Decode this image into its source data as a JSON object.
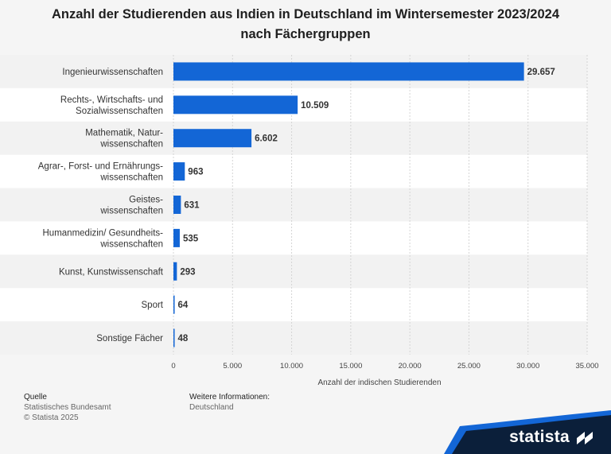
{
  "chart_data": {
    "type": "bar",
    "orientation": "horizontal",
    "title": "Anzahl der Studierenden aus Indien in Deutschland im Wintersemester 2023/2024 nach Fächergruppen",
    "title_lines": [
      "Anzahl der Studierenden aus Indien in Deutschland im Wintersemester 2023/2024",
      "nach Fächergruppen"
    ],
    "categories": [
      [
        "Ingenieurwissenschaften"
      ],
      [
        "Rechts-, Wirtschafts- und",
        "Sozialwissenschaften"
      ],
      [
        "Mathematik, Natur-",
        "wissenschaften"
      ],
      [
        "Agrar-, Forst- und Ernährungs-",
        "wissenschaften"
      ],
      [
        "Geistes-",
        "wissenschaften"
      ],
      [
        "Humanmedizin/ Gesundheits-",
        "wissenschaften"
      ],
      [
        "Kunst, Kunstwissenschaft"
      ],
      [
        "Sport"
      ],
      [
        "Sonstige Fächer"
      ]
    ],
    "values": [
      29657,
      10509,
      6602,
      963,
      631,
      535,
      293,
      64,
      48
    ],
    "value_labels": [
      "29.657",
      "10.509",
      "6.602",
      "963",
      "631",
      "535",
      "293",
      "64",
      "48"
    ],
    "xlim": [
      0,
      35000
    ],
    "ticks": [
      0,
      5000,
      10000,
      15000,
      20000,
      25000,
      30000,
      35000
    ],
    "tick_labels": [
      "0",
      "5.000",
      "10.000",
      "15.000",
      "20.000",
      "25.000",
      "30.000",
      "35.000"
    ],
    "xlabel": "Anzahl der indischen Studierenden",
    "ylabel": "",
    "grid": true,
    "legend": "none",
    "bar_color": "#1366d6"
  },
  "footer": {
    "source_heading": "Quelle",
    "source_lines": [
      "Statistisches Bundesamt",
      "© Statista 2025"
    ],
    "info_heading": "Weitere Informationen:",
    "info_lines": [
      "Deutschland"
    ]
  },
  "brand": {
    "name": "statista",
    "icon": "statista-logo-icon",
    "colors": {
      "dark": "#0b1f3a",
      "accent": "#1366d6"
    }
  }
}
